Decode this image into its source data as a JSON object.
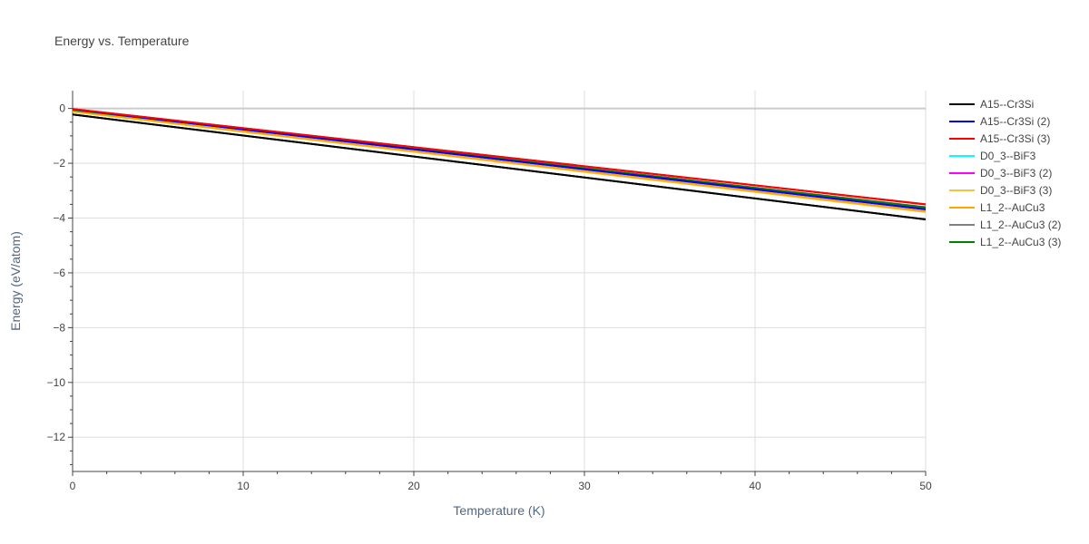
{
  "chart_data": {
    "type": "line",
    "title": "Energy vs. Temperature",
    "xlabel": "Temperature (K)",
    "ylabel": "Energy (eV/atom)",
    "xlim": [
      0,
      50
    ],
    "ylim": [
      -13.25,
      0.65
    ],
    "xticks": [
      0,
      10,
      20,
      30,
      40,
      50
    ],
    "yticks": [
      0,
      -2,
      -4,
      -6,
      -8,
      -10,
      -12
    ],
    "ytick_labels": [
      "0",
      "−2",
      "−4",
      "−6",
      "−8",
      "−10",
      "−12"
    ],
    "grid": true,
    "legend_position": "right",
    "x": [
      0,
      50
    ],
    "series": [
      {
        "name": "A15--Cr3Si",
        "color": "#000000",
        "values": [
          -0.22,
          -4.05
        ]
      },
      {
        "name": "A15--Cr3Si (2)",
        "color": "#0000ff",
        "values": [
          -0.03,
          -3.68
        ]
      },
      {
        "name": "A15--Cr3Si (3)",
        "color": "#ff0000",
        "values": [
          -0.02,
          -3.5
        ]
      },
      {
        "name": "D0_3--BiF3",
        "color": "#00ffff",
        "values": [
          -0.05,
          -3.62
        ]
      },
      {
        "name": "D0_3--BiF3 (2)",
        "color": "#ff00ff",
        "values": [
          -0.06,
          -3.63
        ]
      },
      {
        "name": "D0_3--BiF3 (3)",
        "color": "#f5c242",
        "values": [
          -0.12,
          -3.78
        ]
      },
      {
        "name": "L1_2--AuCu3",
        "color": "#ffa500",
        "values": [
          -0.1,
          -3.75
        ]
      },
      {
        "name": "L1_2--AuCu3 (2)",
        "color": "#808080",
        "values": [
          -0.04,
          -3.6
        ]
      },
      {
        "name": "L1_2--AuCu3 (3)",
        "color": "#008000",
        "values": [
          -0.05,
          -3.61
        ]
      }
    ]
  }
}
